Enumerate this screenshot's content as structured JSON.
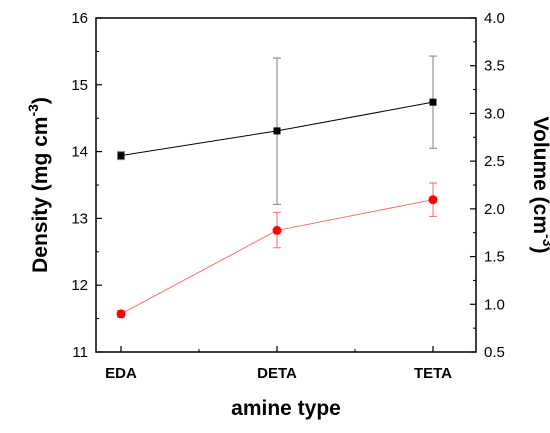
{
  "chart_data": {
    "type": "line",
    "categories": [
      "EDA",
      "DETA",
      "TETA"
    ],
    "xlabel": "amine type",
    "ylabel_left": {
      "base": "Density (mg cm",
      "sup": "-3",
      "close": ")"
    },
    "ylabel_right": {
      "base": "Volume (cm",
      "sup": "-3",
      "close": ")"
    },
    "ylim_left": [
      11,
      16
    ],
    "yticks_left": [
      11,
      12,
      13,
      14,
      15,
      16
    ],
    "ylim_right": [
      0.5,
      4.0
    ],
    "yticks_right": [
      "0.5",
      "1.0",
      "1.5",
      "2.0",
      "2.5",
      "3.0",
      "3.5",
      "4.0"
    ],
    "grid": false,
    "series": [
      {
        "axis": "left",
        "marker": "square",
        "color": "#000000",
        "values": [
          13.94,
          14.31,
          14.74
        ],
        "err_low": [
          13.88,
          13.21,
          14.05
        ],
        "err_high": [
          14.0,
          15.4,
          15.43
        ]
      },
      {
        "axis": "left",
        "marker": "circle",
        "color": "#ff0000",
        "line_color": "#ff6a6a",
        "values": [
          11.57,
          12.82,
          13.28
        ],
        "err_low": [
          11.52,
          12.56,
          13.03
        ],
        "err_high": [
          11.62,
          13.09,
          13.53
        ]
      }
    ]
  }
}
